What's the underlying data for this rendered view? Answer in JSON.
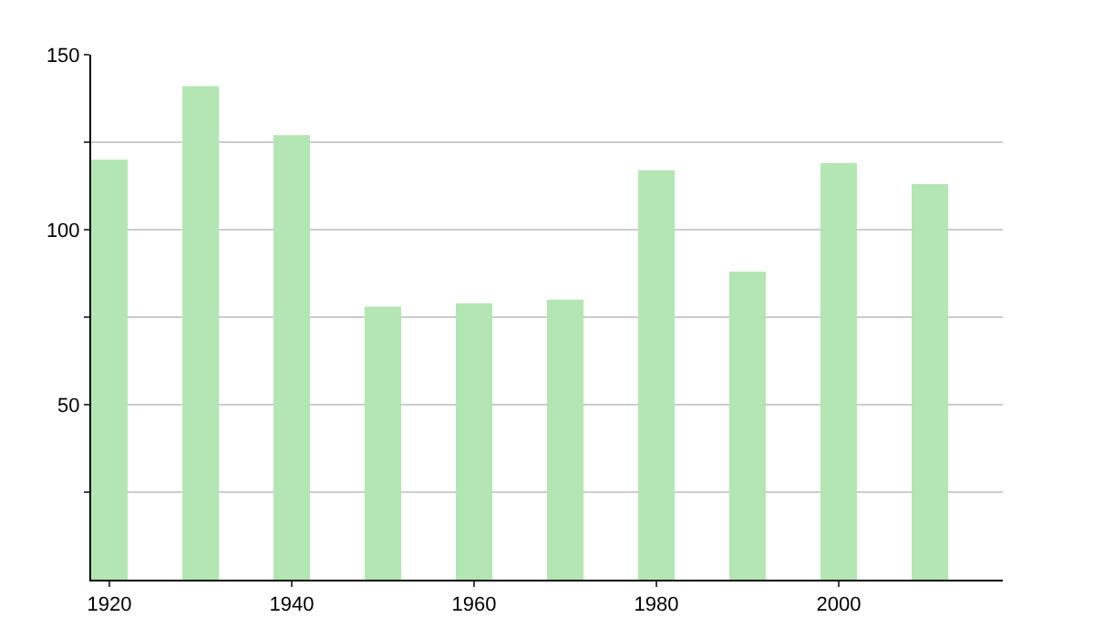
{
  "chart_data": {
    "type": "bar",
    "x": [
      1920,
      1930,
      1940,
      1950,
      1960,
      1970,
      1980,
      1990,
      2000,
      2010
    ],
    "values": [
      120,
      141,
      127,
      78,
      79,
      80,
      117,
      88,
      119,
      113
    ],
    "color": "#b3e6b3",
    "xlim": [
      1918,
      2018
    ],
    "xticks": [
      1920,
      1940,
      1960,
      1980,
      2000
    ],
    "ylim": [
      0,
      150
    ],
    "yticks": [
      {
        "value": 25,
        "label": null
      },
      50,
      {
        "value": 75,
        "label": null
      },
      100,
      {
        "value": 125,
        "label": null
      },
      150
    ],
    "grid": "y",
    "legend": false
  }
}
